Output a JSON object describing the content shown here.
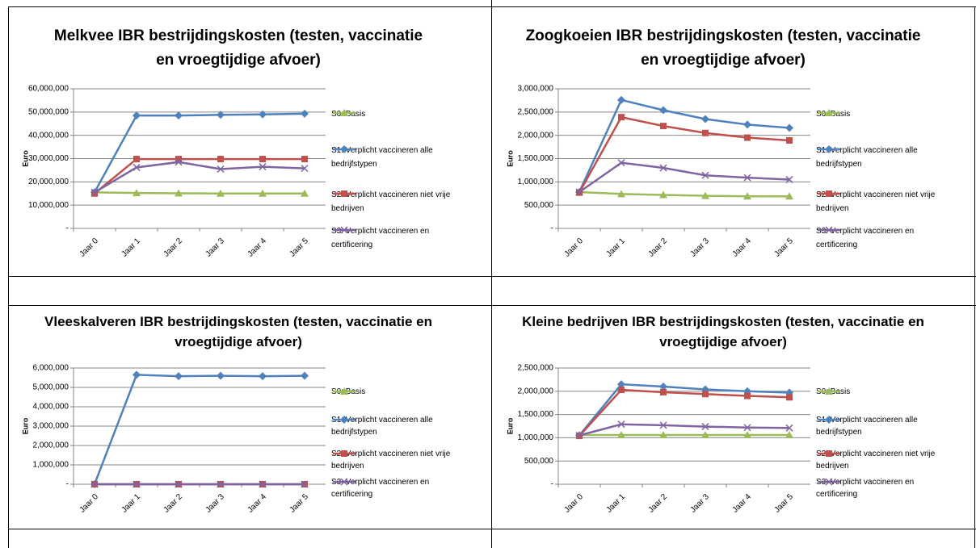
{
  "chart_data": [
    {
      "type": "line",
      "title": "Melkvee IBR bestrijdingskosten (testen, vaccinatie en vroegtijdige afvoer)",
      "y_label": "Euro",
      "categories": [
        "Jaar 0",
        "Jaar 1",
        "Jaar 2",
        "Jaar 3",
        "Jaar 4",
        "Jaar 5"
      ],
      "ylim": [
        0,
        60000000
      ],
      "yticks": [
        {
          "value": 0,
          "label": "-"
        },
        {
          "value": 10000000,
          "label": "10,000,000"
        },
        {
          "value": 20000000,
          "label": "20,000,000"
        },
        {
          "value": 30000000,
          "label": "30,000,000"
        },
        {
          "value": 40000000,
          "label": "40,000,000"
        },
        {
          "value": 50000000,
          "label": "50,000,000"
        },
        {
          "value": 60000000,
          "label": "60,000,000"
        }
      ],
      "grid": true,
      "series": [
        {
          "name": "S0: Basis",
          "color": "#9bbb59",
          "marker": "triangle",
          "values": [
            15500000,
            15200000,
            15100000,
            15000000,
            15000000,
            15000000
          ]
        },
        {
          "name": "S1: Verplicht vaccineren alle bedrijfstypen",
          "color": "#4f81bd",
          "marker": "diamond",
          "values": [
            15500000,
            48500000,
            48500000,
            48800000,
            49000000,
            49300000
          ]
        },
        {
          "name": "S2: Verplicht vaccineren niet vrije bedrijven",
          "color": "#c0504d",
          "marker": "square",
          "values": [
            15000000,
            29800000,
            29800000,
            29800000,
            29800000,
            29800000
          ]
        },
        {
          "name": "S3: Verplicht vaccineren en certificering",
          "color": "#8064a2",
          "marker": "x",
          "values": [
            15500000,
            26200000,
            28500000,
            25500000,
            26500000,
            25800000
          ]
        }
      ]
    },
    {
      "type": "line",
      "title": "Zoogkoeien IBR bestrijdingskosten (testen, vaccinatie en vroegtijdige afvoer)",
      "y_label": "Euro",
      "categories": [
        "Jaar 0",
        "Jaar 1",
        "Jaar 2",
        "Jaar 3",
        "Jaar 4",
        "Jaar 5"
      ],
      "ylim": [
        0,
        3000000
      ],
      "yticks": [
        {
          "value": 0,
          "label": "-"
        },
        {
          "value": 500000,
          "label": "500,000"
        },
        {
          "value": 1000000,
          "label": "1,000,000"
        },
        {
          "value": 1500000,
          "label": "1,500,000"
        },
        {
          "value": 2000000,
          "label": "2,000,000"
        },
        {
          "value": 2500000,
          "label": "2,500,000"
        },
        {
          "value": 3000000,
          "label": "3,000,000"
        }
      ],
      "grid": true,
      "series": [
        {
          "name": "S0: Basis",
          "color": "#9bbb59",
          "marker": "triangle",
          "values": [
            780000,
            740000,
            720000,
            700000,
            690000,
            690000
          ]
        },
        {
          "name": "S1: Verplicht vaccineren alle bedrijfstypen",
          "color": "#4f81bd",
          "marker": "diamond",
          "values": [
            780000,
            2760000,
            2540000,
            2350000,
            2230000,
            2160000
          ]
        },
        {
          "name": "S2: Verplicht vaccineren niet vrije bedrijven",
          "color": "#c0504d",
          "marker": "square",
          "values": [
            770000,
            2390000,
            2200000,
            2050000,
            1950000,
            1890000
          ]
        },
        {
          "name": "S3: Verplicht vaccineren en certificering",
          "color": "#8064a2",
          "marker": "x",
          "values": [
            780000,
            1410000,
            1300000,
            1140000,
            1090000,
            1050000
          ]
        }
      ]
    },
    {
      "type": "line",
      "title": "Vleeskalveren IBR bestrijdingskosten (testen, vaccinatie en vroegtijdige afvoer)",
      "y_label": "Euro",
      "categories": [
        "Jaar 0",
        "Jaar 1",
        "Jaar 2",
        "Jaar 3",
        "Jaar 4",
        "Jaar 5"
      ],
      "ylim": [
        0,
        6000000
      ],
      "yticks": [
        {
          "value": 0,
          "label": "-"
        },
        {
          "value": 1000000,
          "label": "1,000,000"
        },
        {
          "value": 2000000,
          "label": "2,000,000"
        },
        {
          "value": 3000000,
          "label": "3,000,000"
        },
        {
          "value": 4000000,
          "label": "4,000,000"
        },
        {
          "value": 5000000,
          "label": "5,000,000"
        },
        {
          "value": 6000000,
          "label": "6,000,000"
        }
      ],
      "grid": true,
      "series": [
        {
          "name": "S0: Basis",
          "color": "#9bbb59",
          "marker": "triangle",
          "values": [
            0,
            0,
            0,
            0,
            0,
            0
          ]
        },
        {
          "name": "S1: Verplicht vaccineren alle bedrijfstypen",
          "color": "#4f81bd",
          "marker": "diamond",
          "values": [
            0,
            5650000,
            5580000,
            5600000,
            5580000,
            5600000
          ]
        },
        {
          "name": "S2: Verplicht vaccineren niet vrije bedrijven",
          "color": "#c0504d",
          "marker": "square",
          "values": [
            0,
            0,
            0,
            0,
            0,
            0
          ]
        },
        {
          "name": "S3: Verplicht vaccineren en certificering",
          "color": "#8064a2",
          "marker": "x",
          "values": [
            0,
            0,
            0,
            0,
            0,
            0
          ]
        }
      ]
    },
    {
      "type": "line",
      "title": "Kleine bedrijven IBR bestrijdingskosten (testen, vaccinatie en vroegtijdige afvoer)",
      "y_label": "Euro",
      "categories": [
        "Jaar 0",
        "Jaar 1",
        "Jaar 2",
        "Jaar 3",
        "Jaar 4",
        "Jaar 5"
      ],
      "ylim": [
        0,
        2500000
      ],
      "yticks": [
        {
          "value": 0,
          "label": "-"
        },
        {
          "value": 500000,
          "label": "500,000"
        },
        {
          "value": 1000000,
          "label": "1,000,000"
        },
        {
          "value": 1500000,
          "label": "1,500,000"
        },
        {
          "value": 2000000,
          "label": "2,000,000"
        },
        {
          "value": 2500000,
          "label": "2,500,000"
        }
      ],
      "grid": true,
      "series": [
        {
          "name": "S0: Basis",
          "color": "#9bbb59",
          "marker": "triangle",
          "values": [
            1060000,
            1060000,
            1060000,
            1060000,
            1060000,
            1060000
          ]
        },
        {
          "name": "S1: Verplicht vaccineren alle bedrijfstypen",
          "color": "#4f81bd",
          "marker": "diamond",
          "values": [
            1050000,
            2150000,
            2100000,
            2040000,
            2000000,
            1970000
          ]
        },
        {
          "name": "S2: Verplicht vaccineren niet vrije bedrijven",
          "color": "#c0504d",
          "marker": "square",
          "values": [
            1040000,
            2030000,
            1980000,
            1940000,
            1900000,
            1870000
          ]
        },
        {
          "name": "S3: Verplicht vaccineren en certificering",
          "color": "#8064a2",
          "marker": "x",
          "values": [
            1050000,
            1290000,
            1270000,
            1240000,
            1220000,
            1210000
          ]
        }
      ]
    }
  ]
}
